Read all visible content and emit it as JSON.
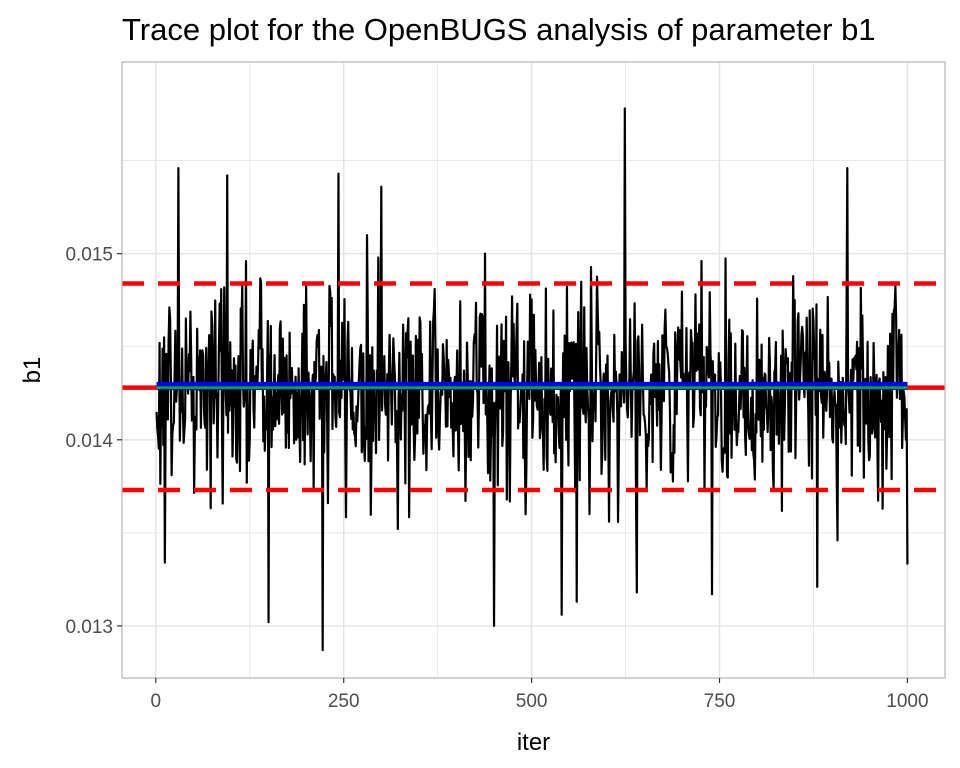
{
  "chart_data": {
    "type": "line",
    "title": "Trace plot for the OpenBUGS analysis of parameter b1",
    "xlabel": "iter",
    "ylabel": "b1",
    "xlim": [
      -45,
      1050
    ],
    "ylim": [
      0.01272,
      0.01603
    ],
    "x_ticks": [
      0,
      250,
      500,
      750,
      1000
    ],
    "x_tick_labels": [
      "0",
      "250",
      "500",
      "750",
      "1000"
    ],
    "y_ticks": [
      0.013,
      0.014,
      0.015
    ],
    "y_tick_labels": [
      "0.013",
      "0.014",
      "0.015"
    ],
    "grid": true,
    "legend": "none",
    "series": [
      {
        "kind": "trace",
        "color": "#000000",
        "x_start": 1,
        "x_end": 1000,
        "n_iter": 1000,
        "summary": {
          "center": 0.01428,
          "min": 0.01287,
          "max": 0.01578
        },
        "notable_points": [
          {
            "x": 1,
            "y": 0.01415
          },
          {
            "x": 5,
            "y": 0.01452
          },
          {
            "x": 12,
            "y": 0.01334
          },
          {
            "x": 30,
            "y": 0.01546
          },
          {
            "x": 95,
            "y": 0.01542
          },
          {
            "x": 150,
            "y": 0.01302
          },
          {
            "x": 222,
            "y": 0.01287
          },
          {
            "x": 243,
            "y": 0.01543
          },
          {
            "x": 300,
            "y": 0.01536
          },
          {
            "x": 450,
            "y": 0.013
          },
          {
            "x": 540,
            "y": 0.01306
          },
          {
            "x": 560,
            "y": 0.01313
          },
          {
            "x": 624,
            "y": 0.01578
          },
          {
            "x": 640,
            "y": 0.01318
          },
          {
            "x": 740,
            "y": 0.01317
          },
          {
            "x": 880,
            "y": 0.01321
          },
          {
            "x": 920,
            "y": 0.01546
          },
          {
            "x": 1000,
            "y": 0.01333
          }
        ]
      },
      {
        "kind": "hline",
        "y": 0.01428,
        "color": "#ff0000",
        "style": "solid"
      },
      {
        "kind": "hline",
        "y": 0.01484,
        "color": "#ff0000",
        "style": "dashed"
      },
      {
        "kind": "hline",
        "y": 0.01373,
        "color": "#ff0000",
        "style": "dashed"
      },
      {
        "kind": "segment",
        "x": [
          1,
          1000
        ],
        "y": 0.01429,
        "color": "#0000ff",
        "style": "solid"
      },
      {
        "kind": "segment",
        "x": [
          1,
          1000
        ],
        "y": 0.01428,
        "color": "#00bb00",
        "style": "solid"
      }
    ]
  },
  "colors": {
    "trace": "#000000",
    "interval": "#ff0000",
    "mean_blue": "#0000ff",
    "mean_green": "#00bb00",
    "grid": "#e3e3e3",
    "panel_border": "#b3b3b3",
    "tick_text": "#4d4d4d"
  }
}
